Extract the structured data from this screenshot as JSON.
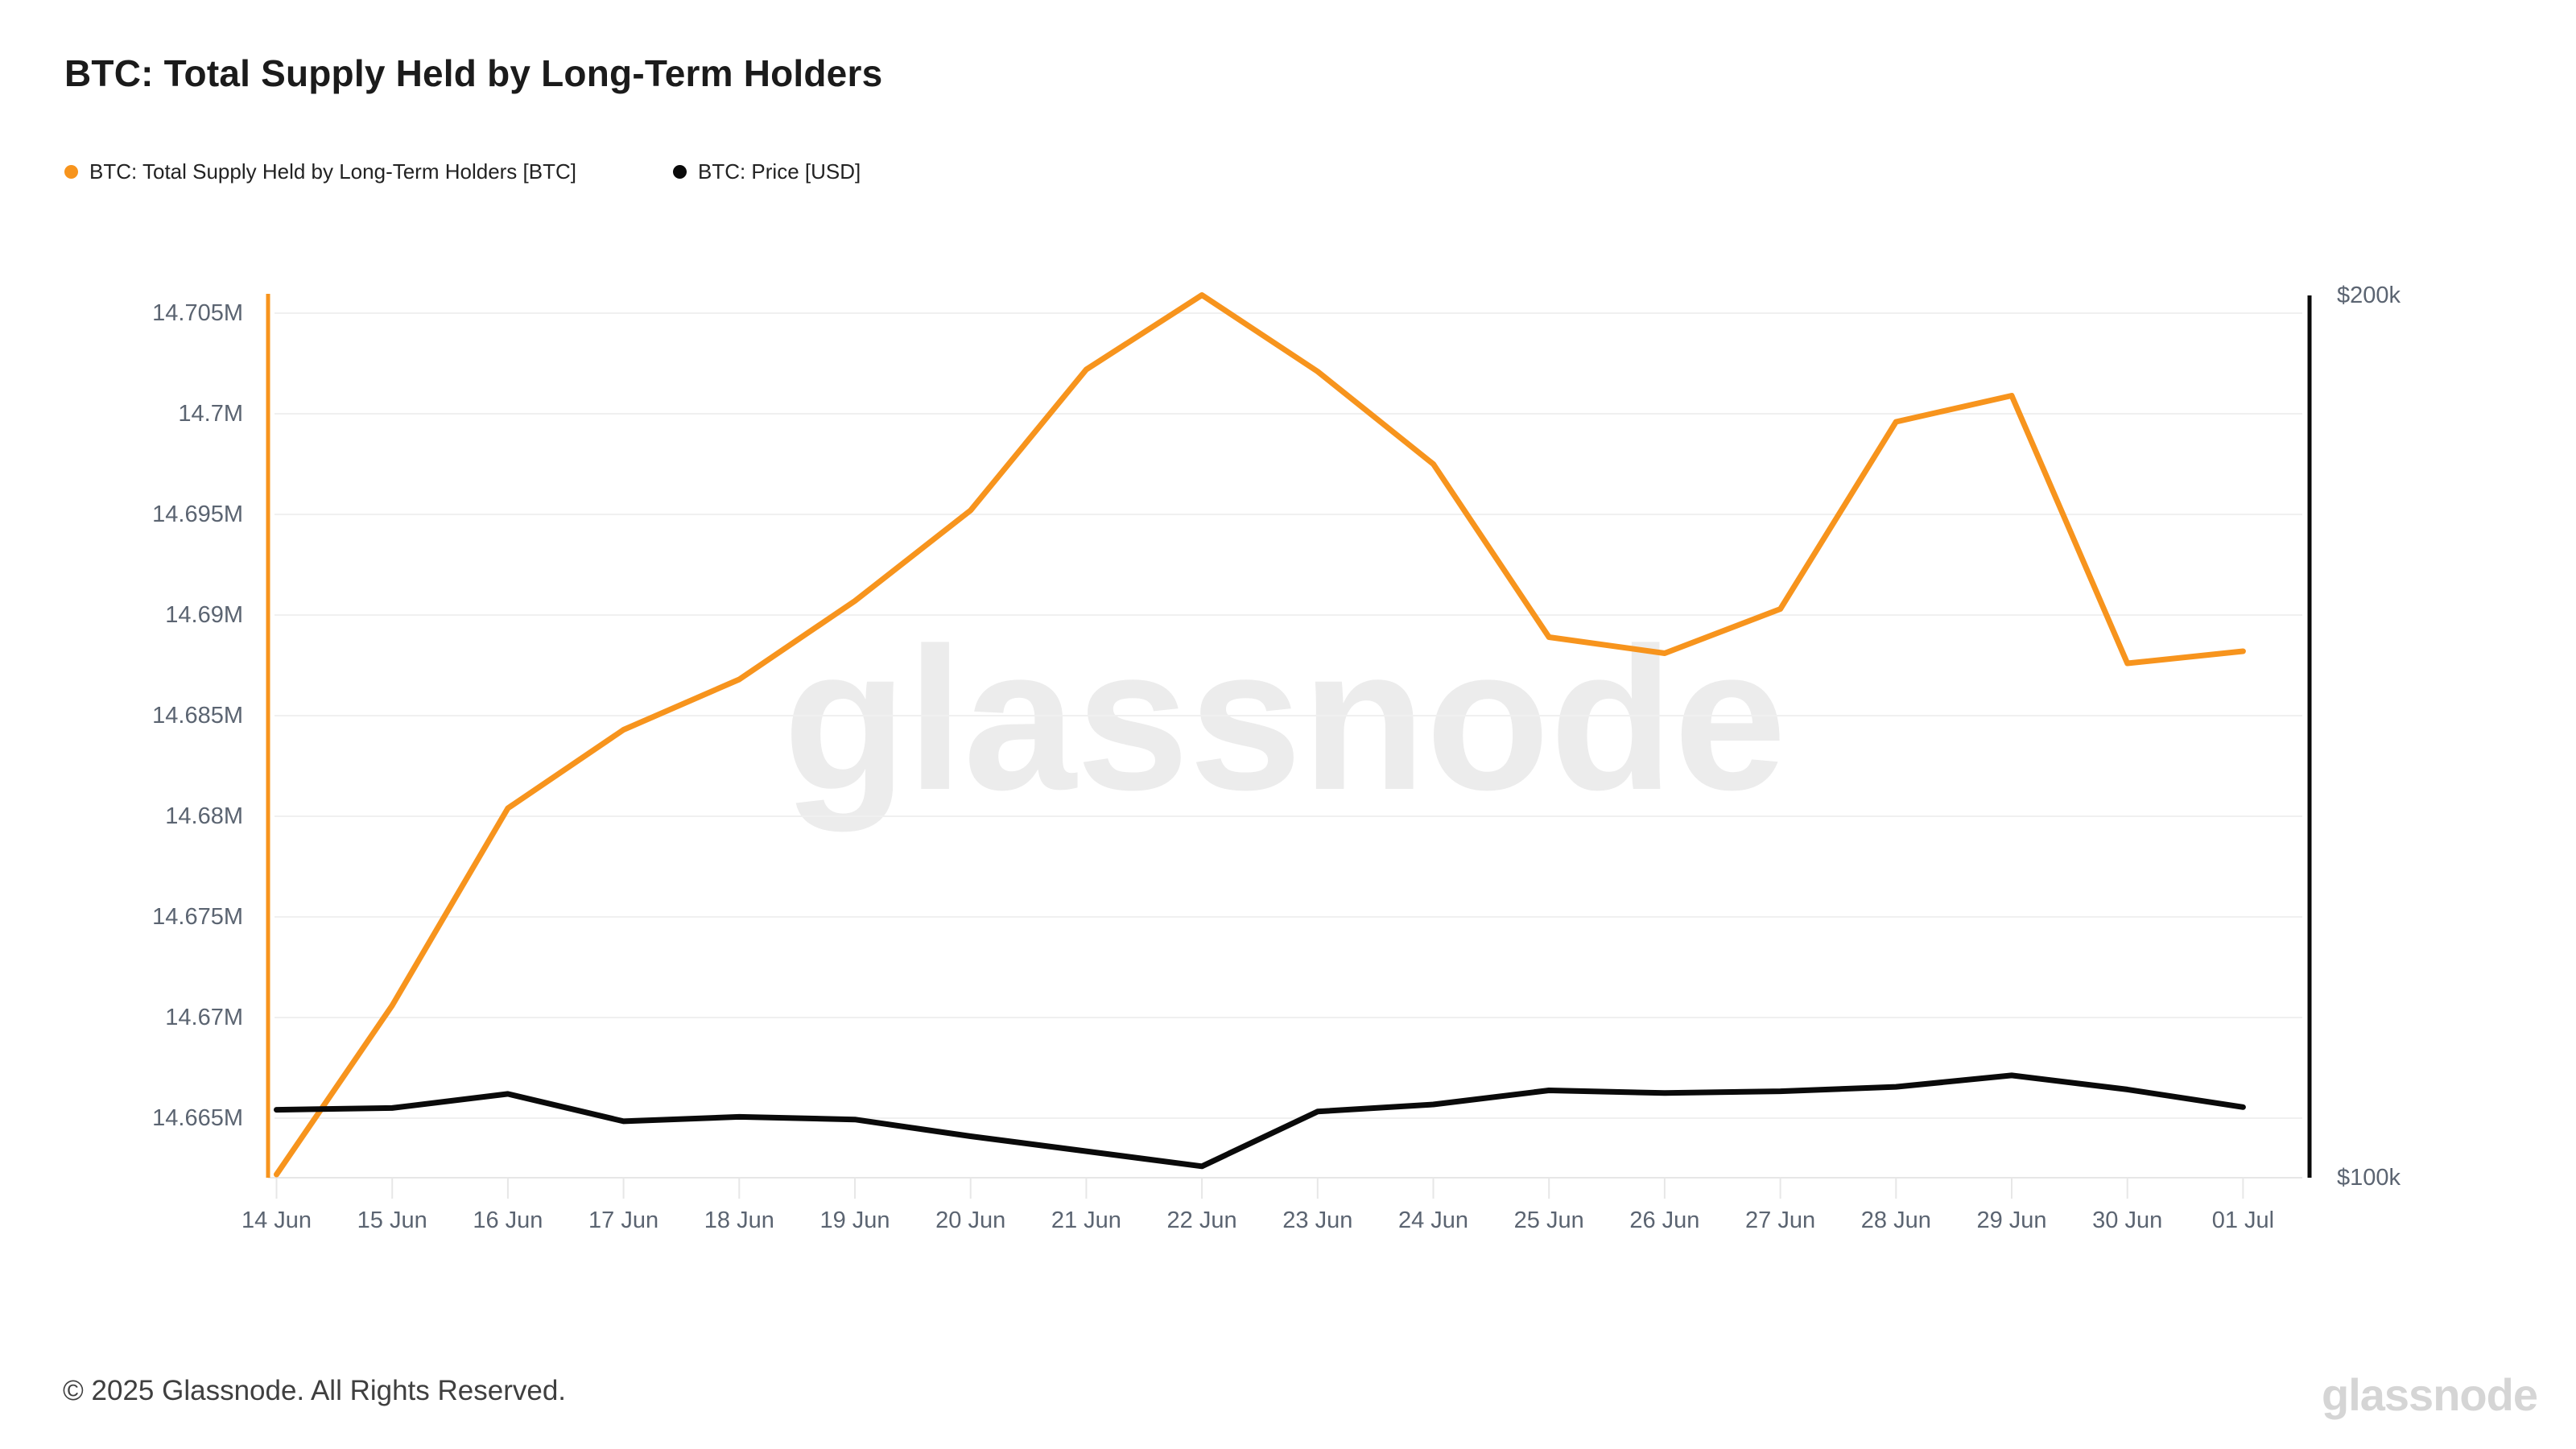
{
  "header": {
    "title": "BTC: Total Supply Held by Long-Term Holders"
  },
  "legend": [
    {
      "label": "BTC: Total Supply Held by Long-Term Holders [BTC]",
      "color": "#f7941d"
    },
    {
      "label": "BTC: Price [USD]",
      "color": "#0a0a0a"
    }
  ],
  "watermark": "glassnode",
  "footer": {
    "copyright": "© 2025 Glassnode. All Rights Reserved.",
    "logo": "glassnode"
  },
  "colors": {
    "supply_line": "#f7941d",
    "price_line": "#0a0a0a",
    "gridline": "#f0f0f0",
    "axis_bottom": "#e7e7e7",
    "axis_text": "#5b6471",
    "left_axis_line": "#f7941d",
    "right_axis_line": "#0a0a0a",
    "watermark": "#ececec"
  },
  "chart_data": {
    "type": "line",
    "title": "BTC: Total Supply Held by Long-Term Holders",
    "categories": [
      "14 Jun",
      "15 Jun",
      "16 Jun",
      "17 Jun",
      "18 Jun",
      "19 Jun",
      "20 Jun",
      "21 Jun",
      "22 Jun",
      "23 Jun",
      "24 Jun",
      "25 Jun",
      "26 Jun",
      "27 Jun",
      "28 Jun",
      "29 Jun",
      "30 Jun",
      "01 Jul"
    ],
    "series": [
      {
        "name": "BTC: Total Supply Held by Long-Term Holders [BTC]",
        "axis": "left",
        "color": "#f7941d",
        "unit": "M BTC",
        "values": [
          14.6622,
          14.6706,
          14.6804,
          14.6843,
          14.6868,
          14.6907,
          14.6952,
          14.7022,
          14.7059,
          14.7021,
          14.6975,
          14.6889,
          14.6881,
          14.6903,
          14.6996,
          14.7009,
          14.6876,
          14.6882
        ]
      },
      {
        "name": "BTC: Price [USD]",
        "axis": "right",
        "color": "#0a0a0a",
        "unit": "k USD",
        "values": [
          107.7,
          107.9,
          109.5,
          106.4,
          106.9,
          106.6,
          104.7,
          103.0,
          101.3,
          107.5,
          108.3,
          109.9,
          109.6,
          109.8,
          110.3,
          111.6,
          110.0,
          108.0
        ]
      }
    ],
    "left_axis": {
      "tick_labels": [
        "14.705M",
        "14.7M",
        "14.695M",
        "14.69M",
        "14.685M",
        "14.68M",
        "14.675M",
        "14.67M",
        "14.665M"
      ],
      "tick_values": [
        14.705,
        14.7,
        14.695,
        14.69,
        14.685,
        14.68,
        14.675,
        14.67,
        14.665
      ],
      "range": [
        14.662,
        14.7062
      ]
    },
    "right_axis": {
      "tick_labels": [
        "$200k",
        "$100k"
      ],
      "tick_values": [
        200,
        100
      ],
      "range": [
        100,
        200
      ]
    },
    "grid": "horizontal",
    "legend_position": "top-left"
  }
}
